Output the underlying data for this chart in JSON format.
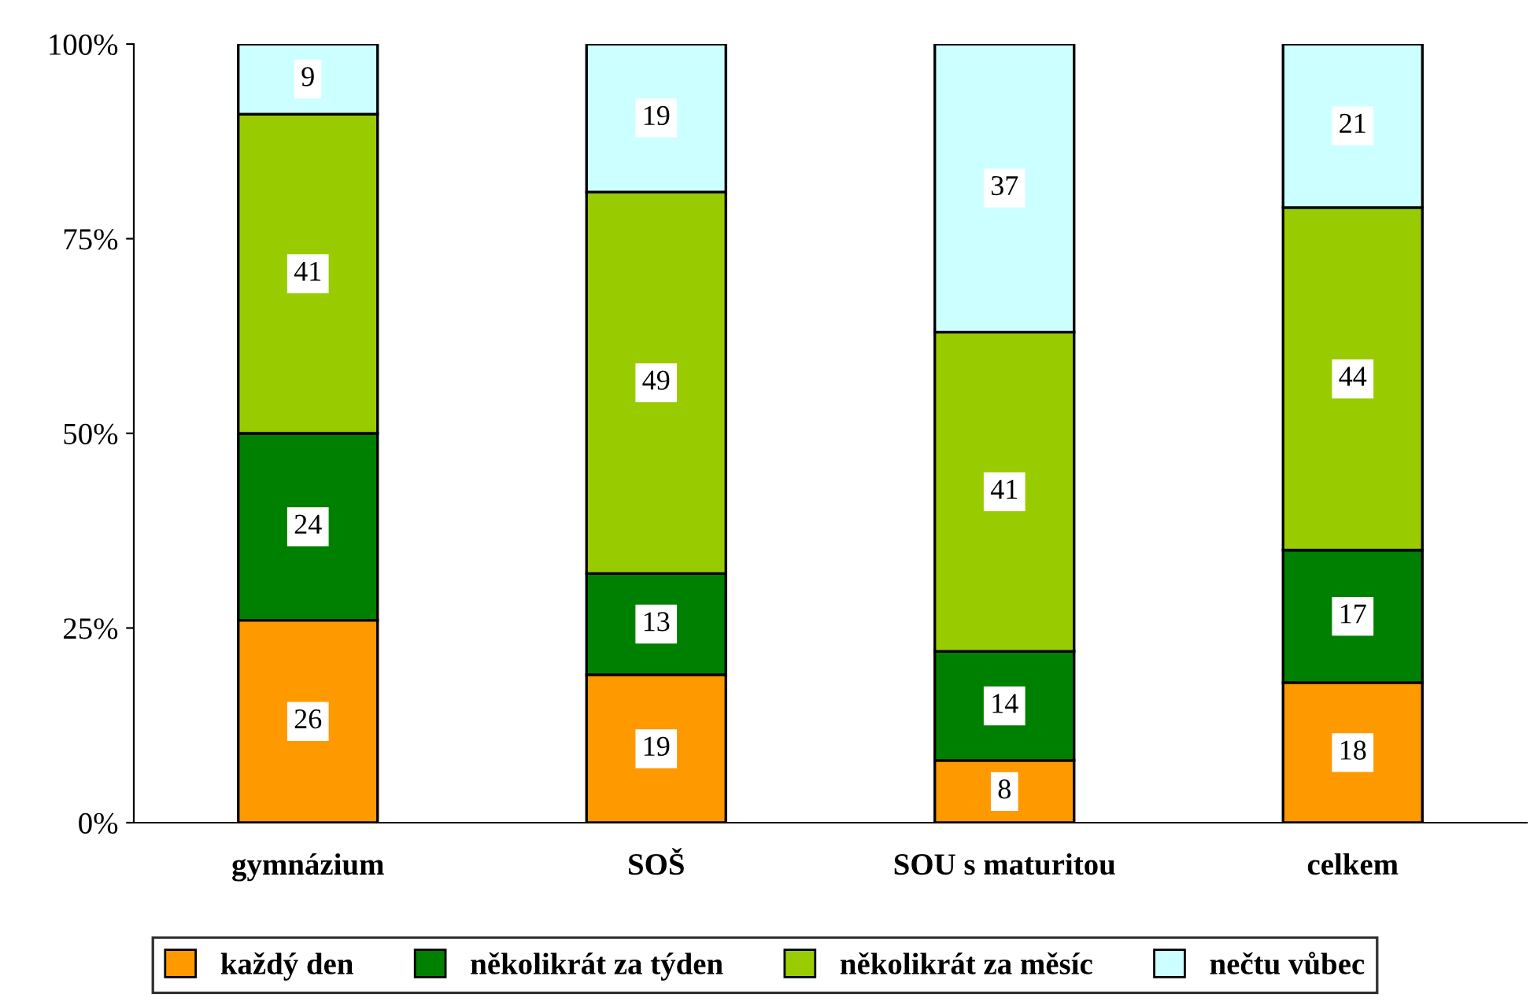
{
  "chart_data": {
    "type": "bar",
    "stacked": true,
    "categories": [
      "gymnázium",
      "SOŠ",
      "SOU s maturitou",
      "celkem"
    ],
    "series": [
      {
        "name": "každý den",
        "color": "#ff9900",
        "values": [
          26,
          19,
          8,
          18
        ]
      },
      {
        "name": "několikrát za týden",
        "color": "#008000",
        "values": [
          24,
          13,
          14,
          17
        ]
      },
      {
        "name": "několikrát za měsíc",
        "color": "#99cc00",
        "values": [
          41,
          49,
          41,
          44
        ]
      },
      {
        "name": "nečtu vůbec",
        "color": "#ccffff",
        "values": [
          9,
          19,
          37,
          21
        ]
      }
    ],
    "ylim": [
      0,
      100
    ],
    "yticks": [
      {
        "value": 0,
        "label": "0%"
      },
      {
        "value": 25,
        "label": "25%"
      },
      {
        "value": 50,
        "label": "50%"
      },
      {
        "value": 75,
        "label": "75%"
      },
      {
        "value": 100,
        "label": "100%"
      }
    ],
    "data_labels": true,
    "grid": false,
    "legend": "bottom"
  }
}
